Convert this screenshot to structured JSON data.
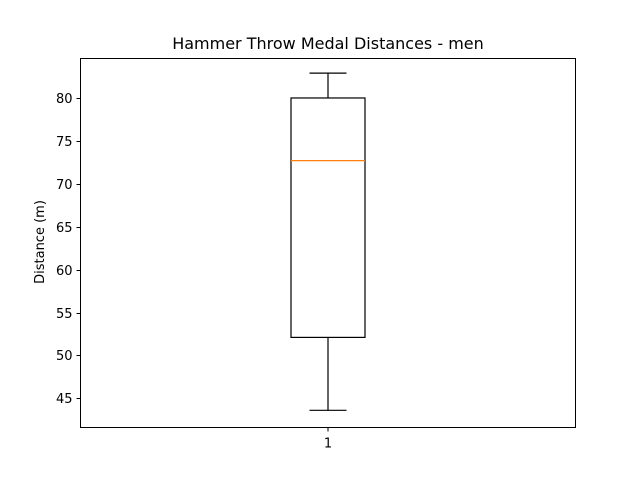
{
  "chart_data": {
    "type": "box",
    "title": "Hammer Throw Medal Distances - men",
    "ylabel": "Distance (m)",
    "xlabel": "",
    "categories": [
      "1"
    ],
    "ylim": [
      41.6,
      84.6
    ],
    "yticks": [
      45,
      50,
      55,
      60,
      65,
      70,
      75,
      80
    ],
    "grid": false,
    "box": {
      "whisker_low": 43.6,
      "q1": 52.1,
      "median": 72.7,
      "q3": 80.0,
      "whisker_high": 82.9
    },
    "colors": {
      "box": "#000000",
      "median": "#ff7f0e",
      "frame": "#000000"
    }
  }
}
